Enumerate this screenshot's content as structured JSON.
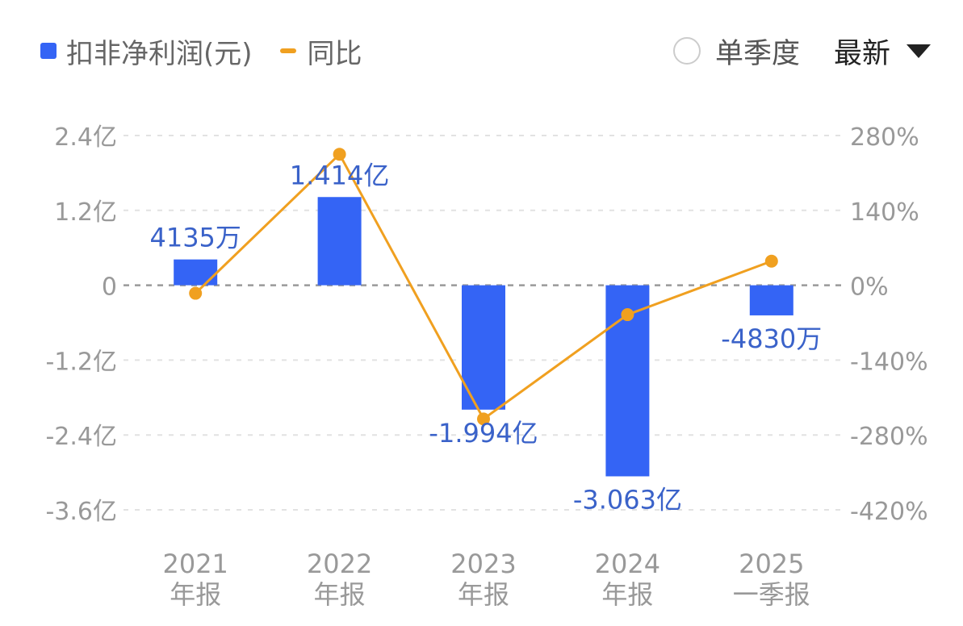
{
  "legend": {
    "bar_label": "扣非净利润(元)",
    "line_label": "同比"
  },
  "controls": {
    "single_quarter_label": "单季度",
    "latest_label": "最新"
  },
  "colors": {
    "bar": "#3464f5",
    "line": "#f0a020",
    "grid": "#e2e2e2",
    "zero_line": "#999999",
    "axis_text": "#999999",
    "value_label": "#3a62c9"
  },
  "chart_data": {
    "type": "bar",
    "categories": [
      [
        "2021",
        "年报"
      ],
      [
        "2022",
        "年报"
      ],
      [
        "2023",
        "年报"
      ],
      [
        "2024",
        "年报"
      ],
      [
        "2025",
        "一季报"
      ]
    ],
    "series": [
      {
        "name": "扣非净利润(元)",
        "type": "bar",
        "axis": "left",
        "values": [
          41350000,
          141400000,
          -199400000,
          -306300000,
          -48300000
        ],
        "labels": [
          "4135万",
          "1.414亿",
          "-1.994亿",
          "-3.063亿",
          "-4830万"
        ]
      },
      {
        "name": "同比",
        "type": "line",
        "axis": "right",
        "values": [
          -15,
          245,
          -250,
          -55,
          45
        ]
      }
    ],
    "y_left": {
      "ticks": [
        240000000,
        120000000,
        0,
        -120000000,
        -240000000,
        -360000000
      ],
      "tick_labels": [
        "2.4亿",
        "1.2亿",
        "0",
        "-1.2亿",
        "-2.4亿",
        "-3.6亿"
      ],
      "range": [
        -360000000,
        240000000
      ]
    },
    "y_right": {
      "ticks": [
        280,
        140,
        0,
        -140,
        -280,
        -420
      ],
      "tick_labels": [
        "280%",
        "140%",
        "0%",
        "-140%",
        "-280%",
        "-420%"
      ],
      "range": [
        -420,
        280
      ]
    },
    "grid": true,
    "legend_position": "top-left"
  }
}
